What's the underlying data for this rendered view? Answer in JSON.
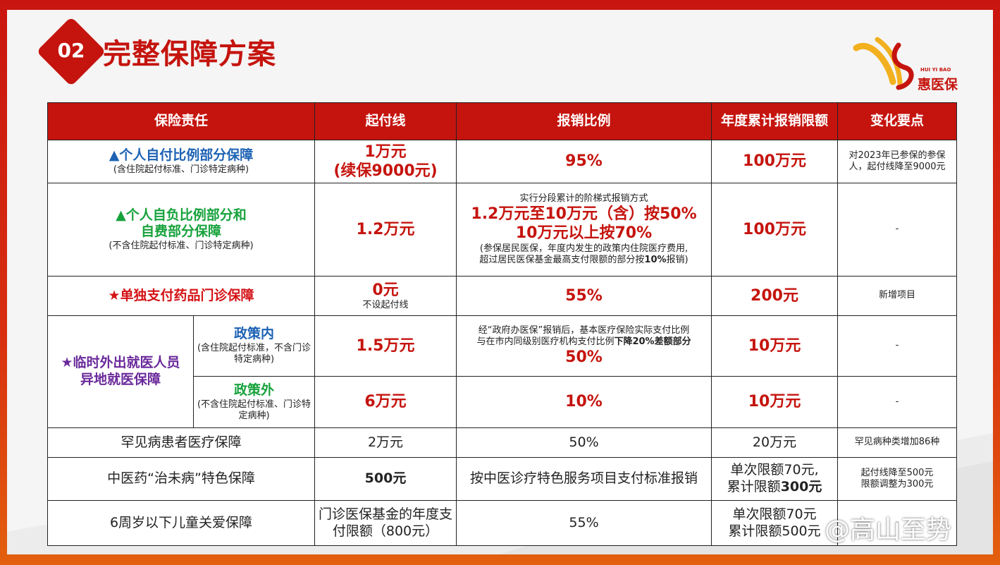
{
  "header": {
    "badge": "02",
    "title": "完整保障方案"
  },
  "logo": {
    "en": "HUI YI BAO",
    "cn": "惠医保"
  },
  "watermark": "@高山至势",
  "table": {
    "headers": [
      "保险责任",
      "起付线",
      "报销比例",
      "年度累计报销限额",
      "变化要点"
    ],
    "row1": {
      "title": "▲个人自付比例部分保障",
      "sub": "(含住院起付标准、门诊特定病种)",
      "deductible_l1": "1万元",
      "deductible_l2": "(续保9000元)",
      "ratio": "95%",
      "limit": "100万元",
      "change": "对2023年已参保的参保人，起付线降至9000元"
    },
    "row2": {
      "title_l1": "▲个人自负比例部分和",
      "title_l2": "自费部分保障",
      "sub": "(不含住院起付标准、门诊特定病种)",
      "deductible": "1.2万元",
      "ratio_l0": "实行分段累计的阶梯式报销方式",
      "ratio_l1": "1.2万元至10万元（含）按50%",
      "ratio_l2": "10万元以上按70%",
      "ratio_note_l1": "(参保居民医保，年度内发生的政策内住院医疗费用,",
      "ratio_note_l2a": "超过居民医保基金最高支付限额的部分按",
      "ratio_note_l2b": "10%",
      "ratio_note_l2c": "报销)",
      "limit": "100万元",
      "change": "-"
    },
    "row3": {
      "title": "★单独支付药品门诊保障",
      "deductible": "0元",
      "deductible_sub": "不设起付线",
      "ratio": "55%",
      "limit": "200元",
      "change": "新增项目"
    },
    "row4": {
      "group_l1": "★临时外出就医人员",
      "group_l2": "异地就医保障",
      "in_title": "政策内",
      "in_sub": "(含住院起付标准，不含门诊特定病种)",
      "in_deductible": "1.5万元",
      "in_ratio_l1": "经“政府办医保”报销后，基本医疗保险实际支付比例",
      "in_ratio_l2a": "与在市内同级别医疗机构支付比例",
      "in_ratio_l2b": "下降20%差额部分",
      "in_ratio_l3": "50%",
      "in_limit": "10万元",
      "in_change": "-",
      "out_title": "政策外",
      "out_sub": "(不含住院起付标准、门诊特定病种)",
      "out_deductible": "6万元",
      "out_ratio": "10%",
      "out_limit": "10万元",
      "out_change": "-"
    },
    "row5": {
      "title": "罕见病患者医疗保障",
      "deductible": "2万元",
      "ratio": "50%",
      "limit": "20万元",
      "change": "罕见病种类增加86种"
    },
    "row6": {
      "title": "中医药“治未病”特色保障",
      "deductible": "500元",
      "ratio": "按中医诊疗特色服务项目支付标准报销",
      "limit_l1": "单次限额70元,",
      "limit_l2a": "累计限额",
      "limit_l2b": "300元",
      "change_l1": "起付线降至500元",
      "change_l2": "限额调整为300元"
    },
    "row7": {
      "title": "6周岁以下儿童关爱保障",
      "deductible": "门诊医保基金的年度支付限额（800元）",
      "ratio": "55%",
      "limit_l1": "单次限额70元",
      "limit_l2": "累计限额500元",
      "change": "-"
    }
  },
  "colors": {
    "brand_red": "#c5140e",
    "blue": "#1d62b4",
    "green": "#17a23c",
    "purple": "#6a2a9b"
  }
}
